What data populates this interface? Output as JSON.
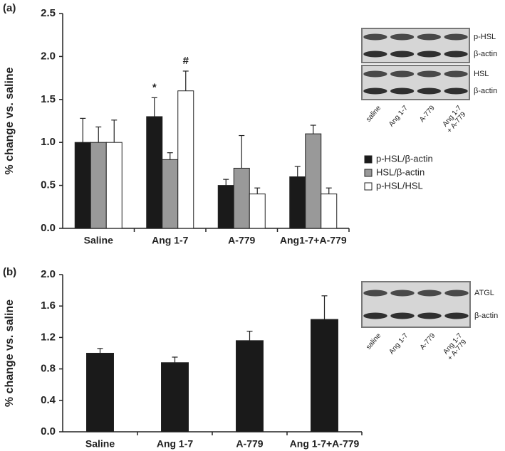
{
  "chart_data": [
    {
      "type": "bar",
      "panel": "(a)",
      "y_label": "% change vs. saline",
      "categories": [
        "Saline",
        "Ang 1-7",
        "A-779",
        "Ang1-7+A-779"
      ],
      "series": [
        {
          "name": "p-HSL/β-actin",
          "color": "#1a1a1a",
          "values": [
            1.0,
            1.3,
            0.5,
            0.6
          ],
          "errors": [
            0.28,
            0.22,
            0.07,
            0.12
          ],
          "annotations": [
            null,
            "*",
            null,
            null
          ]
        },
        {
          "name": "HSL/β-actin",
          "color": "#999999",
          "values": [
            1.0,
            0.8,
            0.7,
            1.1
          ],
          "errors": [
            0.18,
            0.08,
            0.38,
            0.1
          ],
          "annotations": [
            null,
            null,
            null,
            null
          ]
        },
        {
          "name": "p-HSL/HSL",
          "color": "#ffffff",
          "values": [
            1.0,
            1.6,
            0.4,
            0.4
          ],
          "errors": [
            0.26,
            0.23,
            0.07,
            0.07
          ],
          "annotations": [
            null,
            "#",
            null,
            null
          ]
        }
      ],
      "ylim": [
        0,
        2.5
      ],
      "yticks": [
        {
          "value": 0,
          "label": "0.0"
        },
        0.5,
        {
          "value": 1,
          "label": "1.0"
        },
        1.5,
        {
          "value": 2,
          "label": "2.0"
        },
        2.5
      ],
      "blot": {
        "panels": [
          [
            "p-HSL",
            "β-actin"
          ],
          [
            "HSL",
            "β-actin"
          ]
        ],
        "lanes": [
          [
            "saline"
          ],
          [
            "Ang 1-7"
          ],
          [
            "A-779"
          ],
          [
            "Ang 1-7",
            "+ A-779"
          ]
        ]
      }
    },
    {
      "type": "bar",
      "panel": "(b)",
      "y_label": "% change vs. saline",
      "categories": [
        "Saline",
        "Ang 1-7",
        "A-779",
        "Ang 1-7+A-779"
      ],
      "color": "#1a1a1a",
      "values": [
        1.0,
        0.88,
        1.16,
        1.43
      ],
      "errors": [
        0.06,
        0.07,
        0.12,
        0.3
      ],
      "ylim": [
        0,
        2.0
      ],
      "yticks": [
        {
          "value": 0,
          "label": "0.0"
        },
        0.4,
        0.8,
        1.2,
        1.6,
        {
          "value": 2,
          "label": "2.0"
        }
      ],
      "blot": {
        "panels": [
          [
            "ATGL",
            "β-actin"
          ]
        ],
        "lanes": [
          [
            "saline"
          ],
          [
            "Ang 1-7"
          ],
          [
            "A-779"
          ],
          [
            "Ang 1-7",
            "+ A-779"
          ]
        ]
      }
    }
  ]
}
